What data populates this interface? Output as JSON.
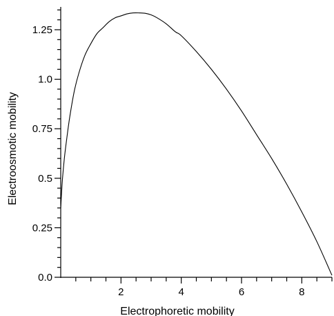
{
  "chart_data": {
    "type": "line",
    "title": "",
    "xlabel": "Electrophoretic mobility",
    "ylabel": "Electroosmotic mobility",
    "xlim": [
      0,
      9
    ],
    "ylim": [
      0,
      1.36
    ],
    "x_ticks_major": [
      2,
      4,
      6,
      8
    ],
    "x_tick_labels": [
      "2",
      "4",
      "6",
      "8"
    ],
    "y_ticks_major": [
      0.0,
      0.25,
      0.5,
      0.75,
      1.0,
      1.25
    ],
    "y_tick_labels": [
      "0.0",
      "0.25",
      "0.5",
      "0.75",
      "1.0",
      "1.25"
    ],
    "grid": false,
    "legend": "none",
    "series": [
      {
        "x": [
          0.0,
          0.05,
          0.12,
          0.2,
          0.3,
          0.45,
          0.6,
          0.8,
          1.0,
          1.2,
          1.4,
          1.6,
          1.8,
          2.0,
          2.2,
          2.4,
          2.6,
          2.8,
          3.0,
          3.2,
          3.5,
          3.8,
          4.0,
          4.5,
          5.0,
          5.5,
          6.0,
          6.5,
          7.0,
          7.5,
          8.0,
          8.5,
          9.0
        ],
        "y": [
          0.35,
          0.48,
          0.6,
          0.7,
          0.81,
          0.94,
          1.03,
          1.12,
          1.18,
          1.23,
          1.26,
          1.29,
          1.31,
          1.32,
          1.33,
          1.335,
          1.335,
          1.333,
          1.325,
          1.31,
          1.28,
          1.24,
          1.22,
          1.14,
          1.05,
          0.95,
          0.84,
          0.72,
          0.6,
          0.47,
          0.33,
          0.18,
          0.01
        ]
      }
    ]
  }
}
